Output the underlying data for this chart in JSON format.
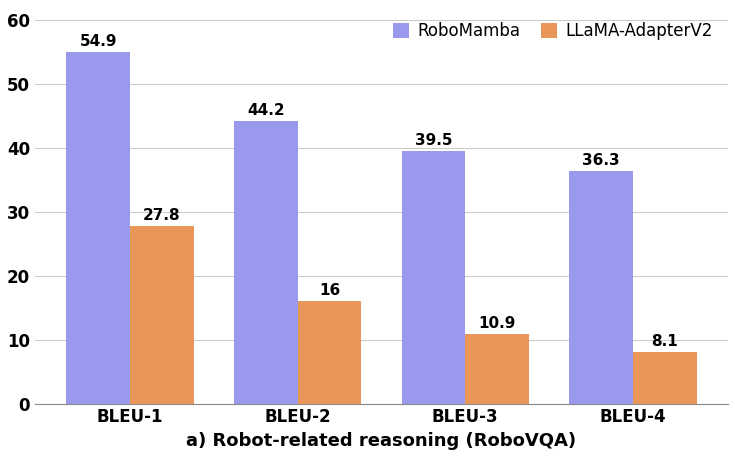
{
  "categories": [
    "BLEU-1",
    "BLEU-2",
    "BLEU-3",
    "BLEU-4"
  ],
  "robomamba_values": [
    54.9,
    44.2,
    39.5,
    36.3
  ],
  "llama_values": [
    27.8,
    16,
    10.9,
    8.1
  ],
  "robomamba_color": "#9999ee",
  "llama_color": "#e8965a",
  "legend_labels": [
    "RoboMamba",
    "LLaMA-AdapterV2"
  ],
  "xlabel": "a) Robot-related reasoning (RoboVQA)",
  "ylim": [
    0,
    62
  ],
  "yticks": [
    0,
    10,
    20,
    30,
    40,
    50,
    60
  ],
  "bar_width": 0.38,
  "value_fontsize": 11,
  "label_fontsize": 13,
  "legend_fontsize": 12,
  "tick_fontsize": 12,
  "xlabel_fontsize": 13,
  "background_color": "#ffffff",
  "grid_color": "#cccccc"
}
